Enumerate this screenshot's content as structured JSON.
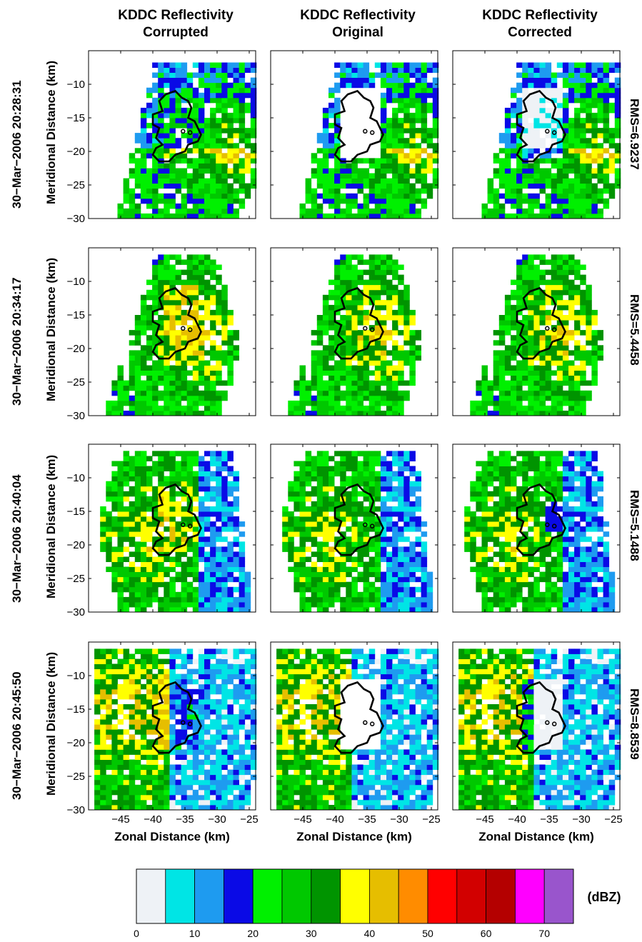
{
  "columns": [
    {
      "line1": "KDDC Reflectivity",
      "line2": "Corrupted"
    },
    {
      "line1": "KDDC Reflectivity",
      "line2": "Original"
    },
    {
      "line1": "KDDC Reflectivity",
      "line2": "Corrected"
    }
  ],
  "rows": [
    {
      "timestamp": "30−Mar−2006 20:28:31",
      "rms": "RMS=6.9237"
    },
    {
      "timestamp": "30−Mar−2006 20:34:17",
      "rms": "RMS=5.4458"
    },
    {
      "timestamp": "30−Mar−2006 20:40:04",
      "rms": "RMS=5.1488"
    },
    {
      "timestamp": "30−Mar−2006 20:45:50",
      "rms": "RMS=8.8539"
    }
  ],
  "chart_data": {
    "type": "heatmap",
    "xlabel": "Zonal Distance (km)",
    "ylabel": "Meridional Distance (km)",
    "xlim": [
      -50,
      -24
    ],
    "ylim": [
      -30,
      -5
    ],
    "xticks": [
      -45,
      -40,
      -35,
      -30,
      -25
    ],
    "yticks": [
      -10,
      -15,
      -20,
      -25,
      -30
    ],
    "colorbar": {
      "unit": "(dBZ)",
      "ticks": [
        0,
        10,
        20,
        30,
        40,
        50,
        60,
        70
      ],
      "bins": [
        0,
        5,
        10,
        15,
        20,
        25,
        30,
        35,
        40,
        45,
        50,
        55,
        60,
        65,
        70,
        75
      ],
      "colors": [
        "#eef2f6",
        "#00e5e5",
        "#1e9bf0",
        "#0a0ae6",
        "#00f000",
        "#00c800",
        "#009400",
        "#ffff00",
        "#e6be00",
        "#ff8c00",
        "#ff0000",
        "#d20000",
        "#b40000",
        "#ff00ff",
        "#9955cc"
      ]
    }
  }
}
